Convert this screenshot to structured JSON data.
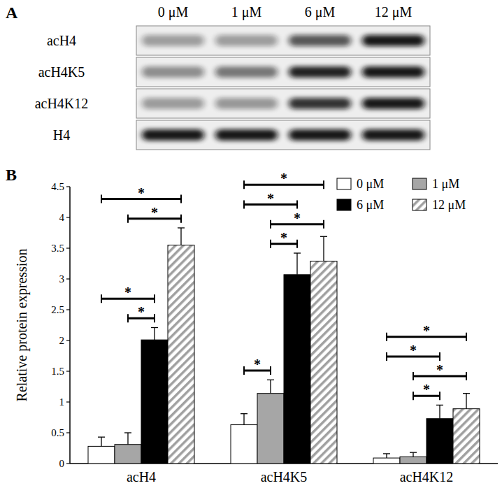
{
  "blot": {
    "label": "A",
    "lanes": [
      "0 μM",
      "1 μM",
      "6 μM",
      "12 μM"
    ],
    "rows": [
      "acH4",
      "acH4K5",
      "acH4K12",
      "H4"
    ]
  },
  "chart_data": {
    "type": "bar",
    "title": "B",
    "y_label": "Relative protein expression",
    "categories": [
      "acH4",
      "acH4K5",
      "acH4K12"
    ],
    "series": [
      {
        "name": "0 μM",
        "color": "#ffffff",
        "values": [
          0.28,
          0.63,
          0.09
        ],
        "errors": [
          0.15,
          0.18,
          0.07
        ]
      },
      {
        "name": "1 μM",
        "color": "#a6a6a6",
        "values": [
          0.31,
          1.14,
          0.11
        ],
        "errors": [
          0.19,
          0.22,
          0.07
        ]
      },
      {
        "name": "6 μM",
        "color": "#000000",
        "values": [
          2.01,
          3.07,
          0.73
        ],
        "errors": [
          0.2,
          0.35,
          0.22
        ]
      },
      {
        "name": "12 μM",
        "color": "#a0a0a0",
        "line_style": "hatched",
        "values": [
          3.55,
          3.29,
          0.89
        ],
        "errors": [
          0.28,
          0.4,
          0.25
        ]
      }
    ],
    "ylim": [
      0,
      4.5
    ],
    "yticks": [
      0,
      0.5,
      1,
      1.5,
      2,
      2.5,
      3,
      3.5,
      4,
      4.5
    ],
    "legend": "upper right",
    "annotations": [
      {
        "category": 0,
        "from": 0,
        "to": 3,
        "label": "*"
      },
      {
        "category": 0,
        "from": 1,
        "to": 3,
        "label": "*"
      },
      {
        "category": 0,
        "from": 0,
        "to": 2,
        "label": "*"
      },
      {
        "category": 0,
        "from": 1,
        "to": 2,
        "label": "*"
      },
      {
        "category": 1,
        "from": 0,
        "to": 3,
        "label": "*"
      },
      {
        "category": 1,
        "from": 1,
        "to": 3,
        "label": "*"
      },
      {
        "category": 1,
        "from": 0,
        "to": 2,
        "label": "*"
      },
      {
        "category": 1,
        "from": 1,
        "to": 2,
        "label": "*"
      },
      {
        "category": 1,
        "from": 0,
        "to": 1,
        "label": "*"
      },
      {
        "category": 2,
        "from": 0,
        "to": 3,
        "label": "*"
      },
      {
        "category": 2,
        "from": 1,
        "to": 3,
        "label": "*"
      },
      {
        "category": 2,
        "from": 0,
        "to": 2,
        "label": "*"
      },
      {
        "category": 2,
        "from": 1,
        "to": 2,
        "label": "*"
      }
    ]
  }
}
